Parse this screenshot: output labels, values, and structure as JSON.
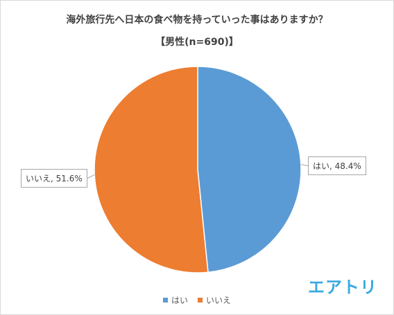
{
  "chart_data": {
    "type": "pie",
    "title": "海外旅行先へ日本の食べ物を持っていった事はありますか？",
    "subtitle": "【男性(n=690)】",
    "slices": [
      {
        "name": "はい",
        "value": 48.4,
        "label": "はい, 48.4%",
        "color": "#5b9bd5"
      },
      {
        "name": "いいえ",
        "value": 51.6,
        "label": "いいえ, 51.6%",
        "color": "#ed7d31"
      }
    ],
    "legend": [
      "はい",
      "いいえ"
    ],
    "legend_position": "bottom"
  },
  "logo_text": "エアトリ"
}
